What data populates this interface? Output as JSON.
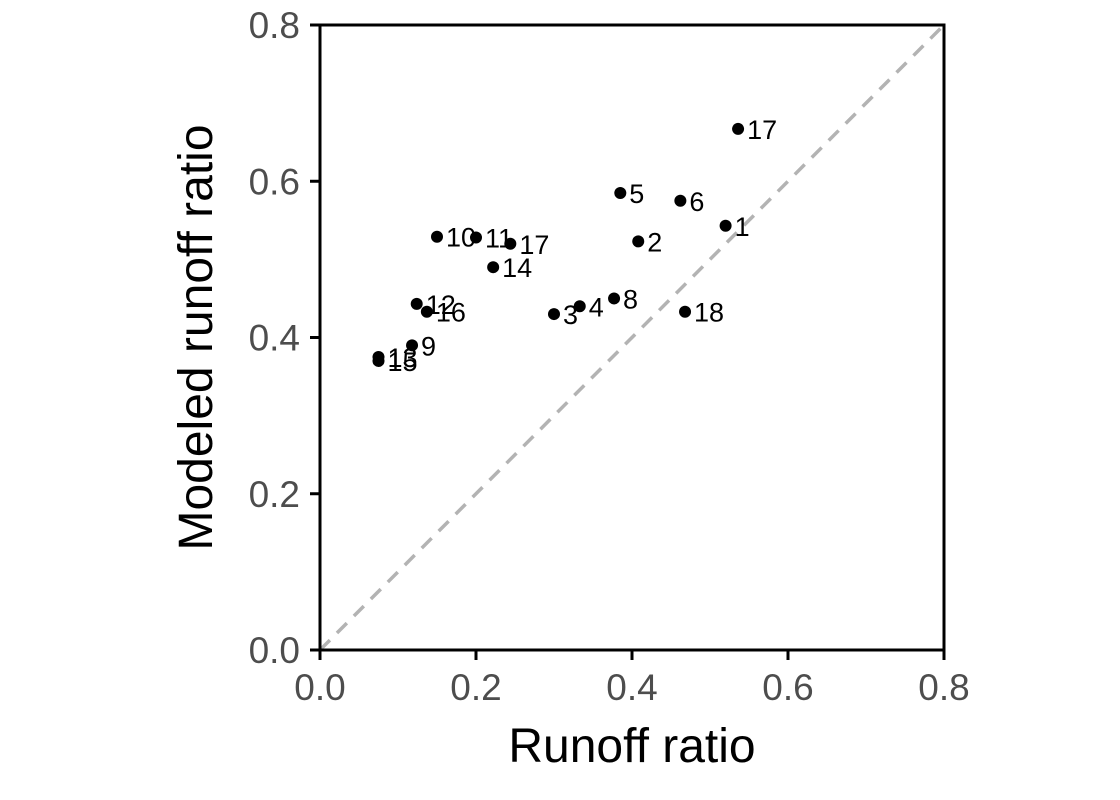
{
  "chart_data": {
    "type": "scatter",
    "title": "",
    "xlabel": "Runoff ratio",
    "ylabel": "Modeled runoff ratio",
    "xlim": [
      0,
      0.8
    ],
    "ylim": [
      0,
      0.8
    ],
    "x_ticks": [
      "0.0",
      "0.2",
      "0.4",
      "0.6",
      "0.8"
    ],
    "y_ticks": [
      "0.0",
      "0.2",
      "0.4",
      "0.6",
      "0.8"
    ],
    "grid": false,
    "reference_line": {
      "style": "dashed",
      "from": [
        0,
        0
      ],
      "to": [
        0.8,
        0.8
      ]
    },
    "colors": {
      "points": "#000000",
      "reference_line": "#b3b3b3",
      "tick_labels": "#4d4d4d",
      "frame": "#000000"
    },
    "points": [
      {
        "label": "1",
        "x": 0.52,
        "y": 0.543
      },
      {
        "label": "2",
        "x": 0.408,
        "y": 0.523
      },
      {
        "label": "3",
        "x": 0.3,
        "y": 0.43
      },
      {
        "label": "4",
        "x": 0.333,
        "y": 0.44
      },
      {
        "label": "5",
        "x": 0.385,
        "y": 0.585
      },
      {
        "label": "6",
        "x": 0.462,
        "y": 0.575
      },
      {
        "label": "17",
        "x": 0.244,
        "y": 0.52
      },
      {
        "label": "8",
        "x": 0.377,
        "y": 0.45
      },
      {
        "label": "9",
        "x": 0.118,
        "y": 0.39
      },
      {
        "label": "10",
        "x": 0.15,
        "y": 0.529
      },
      {
        "label": "11",
        "x": 0.2,
        "y": 0.528
      },
      {
        "label": "12",
        "x": 0.124,
        "y": 0.443
      },
      {
        "label": "13",
        "x": 0.075,
        "y": 0.375
      },
      {
        "label": "14",
        "x": 0.222,
        "y": 0.49
      },
      {
        "label": "15",
        "x": 0.075,
        "y": 0.37
      },
      {
        "label": "16",
        "x": 0.137,
        "y": 0.433
      },
      {
        "label": "17",
        "x": 0.536,
        "y": 0.667
      },
      {
        "label": "18",
        "x": 0.468,
        "y": 0.433
      }
    ]
  }
}
